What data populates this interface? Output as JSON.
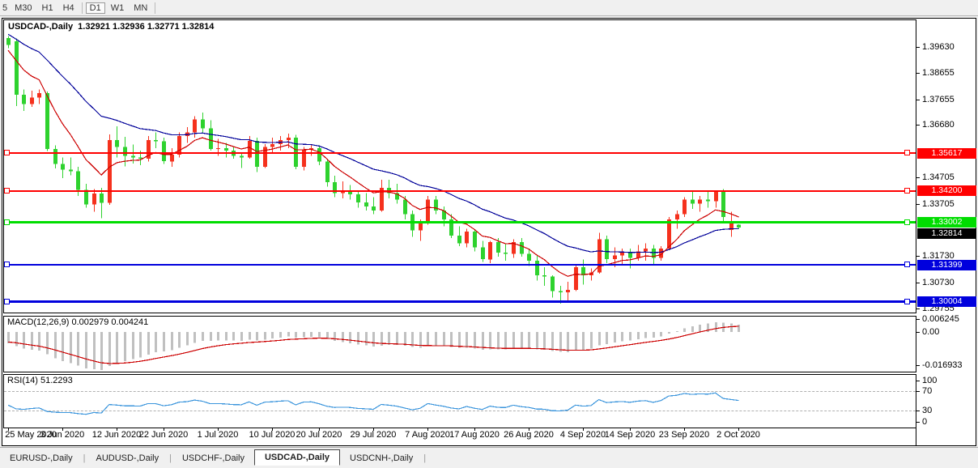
{
  "ui": {
    "toolbar": {
      "buttons": [
        {
          "label": "5",
          "active": false
        },
        {
          "label": "M30",
          "active": false
        },
        {
          "label": "H1",
          "active": false
        },
        {
          "label": "H4",
          "active": false
        },
        {
          "label": "D1",
          "active": true
        },
        {
          "label": "W1",
          "active": false
        },
        {
          "label": "MN",
          "active": false
        }
      ]
    },
    "tabs": [
      {
        "label": "EURUSD-,Daily",
        "active": false
      },
      {
        "label": "AUDUSD-,Daily",
        "active": false
      },
      {
        "label": "USDCHF-,Daily",
        "active": false
      },
      {
        "label": "USDCAD-,Daily",
        "active": true
      },
      {
        "label": "USDCNH-,Daily",
        "active": false
      }
    ]
  },
  "chart_data": {
    "type": "candlestick",
    "symbol": "USDCAD-",
    "timeframe": "Daily",
    "title_line": "USDCAD-,Daily  1.32921 1.32936 1.32771 1.32814",
    "ohlc_display": {
      "open": "1.32921",
      "high": "1.32936",
      "low": "1.32771",
      "close": "1.32814"
    },
    "colors": {
      "bull": "#f5311d",
      "bear": "#2ed22e",
      "ma_fast": "#cc0000",
      "ma_slow": "#000099",
      "hline_red": "#ff0000",
      "hline_green": "#00dd00",
      "hline_blue": "#0000dd",
      "macd_bar": "#c0c0c0",
      "macd_signal": "#cc0000",
      "rsi_line": "#3c96dc",
      "current_price_bg": "#000000"
    },
    "price_axis": {
      "ticks": [
        {
          "label": "1.39630",
          "value": 1.3963
        },
        {
          "label": "1.38655",
          "value": 1.38655
        },
        {
          "label": "1.37655",
          "value": 1.37655
        },
        {
          "label": "1.36680",
          "value": 1.3668
        },
        {
          "label": "1.34705",
          "value": 1.34705
        },
        {
          "label": "1.33705",
          "value": 1.33705
        },
        {
          "label": "1.31730",
          "value": 1.3173
        },
        {
          "label": "1.30730",
          "value": 1.3073
        },
        {
          "label": "1.29755",
          "value": 1.29755
        }
      ]
    },
    "hlines": [
      {
        "label": "1.35617",
        "value": 1.35617,
        "color": "#ff0000",
        "thickness": 2
      },
      {
        "label": "1.34200",
        "value": 1.342,
        "color": "#ff0000",
        "thickness": 2
      },
      {
        "label": "1.33002",
        "value": 1.33002,
        "color": "#00dd00",
        "thickness": 3
      },
      {
        "label": "1.31399",
        "value": 1.31399,
        "color": "#0000dd",
        "thickness": 2
      },
      {
        "label": "1.30004",
        "value": 1.30004,
        "color": "#0000dd",
        "thickness": 3
      }
    ],
    "current_price": {
      "label": "1.32814",
      "value": 1.32814
    },
    "x_axis": {
      "labels": [
        {
          "label": "25 May 2020",
          "index": 0
        },
        {
          "label": "3 Jun 2020",
          "index": 7
        },
        {
          "label": "12 Jun 2020",
          "index": 14
        },
        {
          "label": "22 Jun 2020",
          "index": 20
        },
        {
          "label": "1 Jul 2020",
          "index": 27
        },
        {
          "label": "10 Jul 2020",
          "index": 34
        },
        {
          "label": "20 Jul 2020",
          "index": 40
        },
        {
          "label": "29 Jul 2020",
          "index": 47
        },
        {
          "label": "7 Aug 2020",
          "index": 54
        },
        {
          "label": "17 Aug 2020",
          "index": 60
        },
        {
          "label": "26 Aug 2020",
          "index": 67
        },
        {
          "label": "4 Sep 2020",
          "index": 74
        },
        {
          "label": "14 Sep 2020",
          "index": 80
        },
        {
          "label": "23 Sep 2020",
          "index": 87
        },
        {
          "label": "2 Oct 2020",
          "index": 94
        }
      ]
    },
    "indicators": {
      "macd": {
        "label": "MACD(12,26,9) 0.002979 0.004241",
        "params": [
          12,
          26,
          9
        ],
        "macd_value": "0.002979",
        "signal_value": "0.004241",
        "axis_labels": [
          "0.006245",
          "0.00",
          "-0.016933"
        ]
      },
      "rsi": {
        "label": "RSI(14) 51.2293",
        "period": 14,
        "value": "51.2293",
        "axis_labels": [
          "100",
          "70",
          "30",
          "0"
        ],
        "levels": [
          70,
          30
        ]
      }
    },
    "candles": [
      [
        "25 May",
        1.3996,
        1.4005,
        1.3958,
        1.397
      ],
      [
        "26 May",
        1.3984,
        1.3995,
        1.374,
        1.3782
      ],
      [
        "27 May",
        1.3782,
        1.3802,
        1.3722,
        1.3748
      ],
      [
        "28 May",
        1.3748,
        1.3798,
        1.3736,
        1.3772
      ],
      [
        "29 May",
        1.3772,
        1.3802,
        1.3748,
        1.3788
      ],
      [
        "1 Jun",
        1.3788,
        1.3795,
        1.357,
        1.3577
      ],
      [
        "2 Jun",
        1.3577,
        1.3592,
        1.3504,
        1.3521
      ],
      [
        "3 Jun",
        1.3521,
        1.3546,
        1.3467,
        1.3499
      ],
      [
        "4 Jun",
        1.3499,
        1.3546,
        1.3478,
        1.3493
      ],
      [
        "5 Jun",
        1.3493,
        1.3511,
        1.3401,
        1.3424
      ],
      [
        "8 Jun",
        1.3424,
        1.3446,
        1.3356,
        1.3369
      ],
      [
        "9 Jun",
        1.3369,
        1.3426,
        1.334,
        1.3409
      ],
      [
        "10 Jun",
        1.3409,
        1.3431,
        1.3316,
        1.3374
      ],
      [
        "11 Jun",
        1.3374,
        1.3632,
        1.3366,
        1.3611
      ],
      [
        "12 Jun",
        1.3611,
        1.3664,
        1.3546,
        1.3586
      ],
      [
        "15 Jun",
        1.3586,
        1.3624,
        1.3512,
        1.3551
      ],
      [
        "16 Jun",
        1.3551,
        1.3594,
        1.3522,
        1.3546
      ],
      [
        "17 Jun",
        1.3546,
        1.3571,
        1.3516,
        1.3541
      ],
      [
        "18 Jun",
        1.3541,
        1.3626,
        1.3531,
        1.3611
      ],
      [
        "19 Jun",
        1.3611,
        1.3641,
        1.3581,
        1.3606
      ],
      [
        "22 Jun",
        1.3606,
        1.3621,
        1.3521,
        1.3531
      ],
      [
        "23 Jun",
        1.3531,
        1.3581,
        1.3511,
        1.3556
      ],
      [
        "24 Jun",
        1.3556,
        1.3641,
        1.3546,
        1.3626
      ],
      [
        "25 Jun",
        1.3626,
        1.3661,
        1.3601,
        1.3641
      ],
      [
        "26 Jun",
        1.3641,
        1.3701,
        1.3621,
        1.3689
      ],
      [
        "29 Jun",
        1.3689,
        1.3716,
        1.3641,
        1.3656
      ],
      [
        "30 Jun",
        1.3656,
        1.3686,
        1.3571,
        1.3577
      ],
      [
        "1 Jul",
        1.3577,
        1.3616,
        1.3551,
        1.3581
      ],
      [
        "2 Jul",
        1.3581,
        1.3601,
        1.3546,
        1.3571
      ],
      [
        "3 Jul",
        1.3571,
        1.3586,
        1.3541,
        1.3551
      ],
      [
        "6 Jul",
        1.3551,
        1.3561,
        1.3506,
        1.3546
      ],
      [
        "7 Jul",
        1.3546,
        1.3626,
        1.3541,
        1.3609
      ],
      [
        "8 Jul",
        1.3609,
        1.3621,
        1.3491,
        1.3511
      ],
      [
        "9 Jul",
        1.3511,
        1.3596,
        1.3506,
        1.3586
      ],
      [
        "10 Jul",
        1.3586,
        1.3621,
        1.3561,
        1.3596
      ],
      [
        "13 Jul",
        1.3596,
        1.3626,
        1.3571,
        1.3611
      ],
      [
        "14 Jul",
        1.3611,
        1.3636,
        1.3581,
        1.3621
      ],
      [
        "15 Jul",
        1.3621,
        1.3631,
        1.3501,
        1.3511
      ],
      [
        "16 Jul",
        1.3511,
        1.3586,
        1.3496,
        1.3576
      ],
      [
        "17 Jul",
        1.3576,
        1.3591,
        1.3551,
        1.3581
      ],
      [
        "20 Jul",
        1.3581,
        1.3591,
        1.3516,
        1.3531
      ],
      [
        "21 Jul",
        1.3531,
        1.3541,
        1.3436,
        1.3453
      ],
      [
        "22 Jul",
        1.3453,
        1.3476,
        1.3396,
        1.3411
      ],
      [
        "23 Jul",
        1.3411,
        1.3456,
        1.3391,
        1.3416
      ],
      [
        "24 Jul",
        1.3416,
        1.3441,
        1.3386,
        1.3406
      ],
      [
        "27 Jul",
        1.3406,
        1.3421,
        1.3356,
        1.3376
      ],
      [
        "28 Jul",
        1.3376,
        1.3411,
        1.3346,
        1.3361
      ],
      [
        "29 Jul",
        1.3361,
        1.3396,
        1.3331,
        1.3346
      ],
      [
        "30 Jul",
        1.3346,
        1.3461,
        1.3341,
        1.3431
      ],
      [
        "31 Jul",
        1.3431,
        1.3461,
        1.3391,
        1.3411
      ],
      [
        "3 Aug",
        1.3411,
        1.3446,
        1.3371,
        1.3386
      ],
      [
        "4 Aug",
        1.3386,
        1.3401,
        1.3311,
        1.3331
      ],
      [
        "5 Aug",
        1.3331,
        1.3346,
        1.3246,
        1.3271
      ],
      [
        "6 Aug",
        1.3271,
        1.3311,
        1.3231,
        1.3296
      ],
      [
        "7 Aug",
        1.3296,
        1.3401,
        1.3291,
        1.3386
      ],
      [
        "10 Aug",
        1.3386,
        1.3401,
        1.3331,
        1.3346
      ],
      [
        "11 Aug",
        1.3346,
        1.3361,
        1.3286,
        1.3311
      ],
      [
        "12 Aug",
        1.3311,
        1.3331,
        1.3241,
        1.3251
      ],
      [
        "13 Aug",
        1.3251,
        1.3286,
        1.3211,
        1.3221
      ],
      [
        "14 Aug",
        1.3221,
        1.3276,
        1.3206,
        1.3266
      ],
      [
        "17 Aug",
        1.3266,
        1.3271,
        1.3191,
        1.3206
      ],
      [
        "18 Aug",
        1.3206,
        1.3231,
        1.3151,
        1.3161
      ],
      [
        "19 Aug",
        1.3161,
        1.3231,
        1.3146,
        1.3226
      ],
      [
        "20 Aug",
        1.3226,
        1.3241,
        1.3171,
        1.3186
      ],
      [
        "21 Aug",
        1.3186,
        1.3221,
        1.3156,
        1.3181
      ],
      [
        "24 Aug",
        1.3181,
        1.3236,
        1.3166,
        1.3226
      ],
      [
        "25 Aug",
        1.3226,
        1.3241,
        1.3171,
        1.3181
      ],
      [
        "26 Aug",
        1.3181,
        1.3201,
        1.3136,
        1.3156
      ],
      [
        "27 Aug",
        1.3156,
        1.3176,
        1.3081,
        1.3101
      ],
      [
        "28 Aug",
        1.3101,
        1.3131,
        1.3061,
        1.3096
      ],
      [
        "31 Aug",
        1.3096,
        1.3101,
        1.3016,
        1.3041
      ],
      [
        "1 Sep",
        1.3041,
        1.3061,
        1.2994,
        1.3036
      ],
      [
        "2 Sep",
        1.3036,
        1.3076,
        1.3006,
        1.3046
      ],
      [
        "3 Sep",
        1.3046,
        1.3141,
        1.3041,
        1.3131
      ],
      [
        "4 Sep",
        1.3131,
        1.3161,
        1.3066,
        1.3101
      ],
      [
        "7 Sep",
        1.3101,
        1.3126,
        1.3081,
        1.3111
      ],
      [
        "8 Sep",
        1.3111,
        1.3261,
        1.3106,
        1.3236
      ],
      [
        "9 Sep",
        1.3236,
        1.3251,
        1.3146,
        1.3161
      ],
      [
        "10 Sep",
        1.3161,
        1.3206,
        1.3131,
        1.3176
      ],
      [
        "11 Sep",
        1.3176,
        1.3201,
        1.3141,
        1.3186
      ],
      [
        "14 Sep",
        1.3186,
        1.3201,
        1.3126,
        1.3166
      ],
      [
        "15 Sep",
        1.3166,
        1.3216,
        1.3156,
        1.3191
      ],
      [
        "16 Sep",
        1.3191,
        1.3221,
        1.3156,
        1.3201
      ],
      [
        "17 Sep",
        1.3201,
        1.3216,
        1.3141,
        1.3166
      ],
      [
        "18 Sep",
        1.3166,
        1.3211,
        1.3156,
        1.3201
      ],
      [
        "21 Sep",
        1.3201,
        1.3321,
        1.3196,
        1.3311
      ],
      [
        "22 Sep",
        1.3311,
        1.3346,
        1.3276,
        1.3331
      ],
      [
        "23 Sep",
        1.3331,
        1.3396,
        1.3321,
        1.3386
      ],
      [
        "24 Sep",
        1.3386,
        1.3416,
        1.3351,
        1.3371
      ],
      [
        "25 Sep",
        1.3371,
        1.3401,
        1.3341,
        1.3386
      ],
      [
        "28 Sep",
        1.3386,
        1.3421,
        1.3356,
        1.3381
      ],
      [
        "29 Sep",
        1.3381,
        1.3421,
        1.3356,
        1.3416
      ],
      [
        "30 Sep",
        1.3416,
        1.3426,
        1.3306,
        1.3321
      ],
      [
        "1 Oct",
        1.3272,
        1.3341,
        1.3246,
        1.3301
      ],
      [
        "2 Oct",
        1.32921,
        1.32936,
        1.32771,
        1.32814
      ]
    ]
  }
}
